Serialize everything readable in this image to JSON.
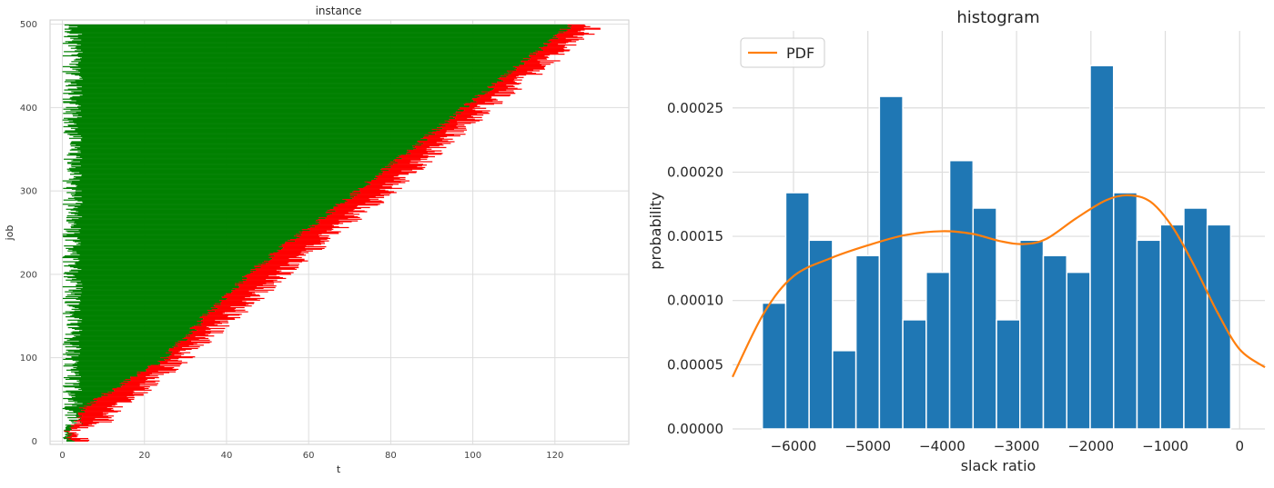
{
  "chart_data": [
    {
      "type": "bar",
      "orientation": "horizontal",
      "title": "instance",
      "xlabel": "t",
      "ylabel": "job",
      "xlim": [
        -3,
        138
      ],
      "ylim": [
        -4,
        505
      ],
      "xticks": [
        0,
        20,
        40,
        60,
        80,
        100,
        120
      ],
      "yticks": [
        0,
        100,
        200,
        300,
        400,
        500
      ],
      "grid": true,
      "job_count": 500,
      "segment_colors": {
        "leading": "#008000",
        "trailing": "#ff0000"
      },
      "segments": [
        {
          "name": "green",
          "start_range": [
            0,
            5
          ],
          "end_at_job": [
            [
              0,
              0
            ],
            [
              40,
              5
            ],
            [
              100,
              25
            ],
            [
              200,
              45
            ],
            [
              300,
              72
            ],
            [
              400,
              98
            ],
            [
              500,
              124
            ]
          ]
        },
        {
          "name": "red",
          "length_range": [
            0,
            8
          ],
          "end_at_job": [
            [
              0,
              5
            ],
            [
              40,
              12
            ],
            [
              100,
              28
            ],
            [
              200,
              52
            ],
            [
              300,
              78
            ],
            [
              400,
              102
            ],
            [
              500,
              129
            ]
          ]
        }
      ]
    },
    {
      "type": "bar",
      "title": "histogram",
      "xlabel": "slack ratio",
      "ylabel": "probability",
      "xlim": [
        -6820,
        340
      ],
      "ylim": [
        0,
        0.00031
      ],
      "xticks": [
        -6000,
        -5000,
        -4000,
        -3000,
        -2000,
        -1000,
        0
      ],
      "ytick_labels": [
        "0.00000",
        "0.00005",
        "0.00010",
        "0.00015",
        "0.00020",
        "0.00025"
      ],
      "yticks": [
        0,
        5e-05,
        0.0001,
        0.00015,
        0.0002,
        0.00025
      ],
      "bin_edges": [
        -6420,
        -6105,
        -5790,
        -5475,
        -5160,
        -4845,
        -4530,
        -4215,
        -3900,
        -3585,
        -3270,
        -2955,
        -2640,
        -2325,
        -2010,
        -1695,
        -1380,
        -1065,
        -750,
        -435,
        -120
      ],
      "values": [
        9.8e-05,
        0.000184,
        0.000147,
        6.1e-05,
        0.000135,
        0.000259,
        8.5e-05,
        0.000122,
        0.000209,
        0.000172,
        8.5e-05,
        0.000147,
        0.000135,
        0.000122,
        0.000283,
        0.000184,
        0.000147,
        0.000159,
        0.000172,
        0.000159
      ],
      "bar_color": "#1f77b4",
      "grid": true,
      "legend": "top-left",
      "series": [
        {
          "name": "PDF",
          "type": "line",
          "color": "#ff7f0e",
          "x": [
            -6820,
            -6400,
            -6000,
            -5500,
            -5000,
            -4500,
            -4000,
            -3600,
            -3200,
            -2900,
            -2600,
            -2200,
            -1800,
            -1500,
            -1200,
            -900,
            -600,
            -300,
            0,
            340
          ],
          "y": [
            4.05e-05,
            9e-05,
            0.000119,
            0.000133,
            0.000143,
            0.000151,
            0.000154,
            0.000152,
            0.000146,
            0.000144,
            0.000148,
            0.000164,
            0.000178,
            0.000182,
            0.000177,
            0.000157,
            0.000126,
            9.1e-05,
            6.2e-05,
            4.8e-05
          ]
        }
      ]
    }
  ]
}
